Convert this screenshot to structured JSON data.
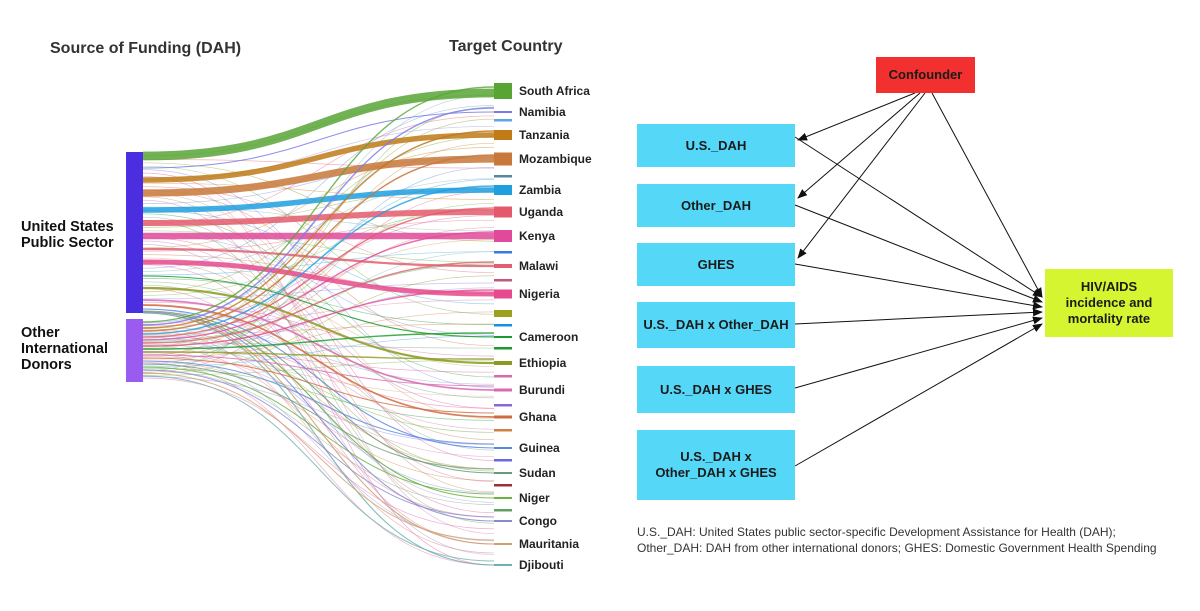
{
  "sankey": {
    "source_header": "Source of Funding (DAH)",
    "target_header": "Target Country",
    "sources": [
      {
        "name": "United States Public Sector",
        "lines": [
          "United States",
          "Public Sector"
        ],
        "color": "#4a2ee0"
      },
      {
        "name": "Other International Donors",
        "lines": [
          "Other",
          "International",
          "Donors"
        ],
        "color": "#9a5cf0"
      }
    ],
    "countries": [
      {
        "name": "South Africa",
        "color": "#58a536"
      },
      {
        "name": "Namibia",
        "color": "#7c7be6"
      },
      {
        "name": "Tanzania",
        "color": "#c07a16"
      },
      {
        "name": "Mozambique",
        "color": "#c8783a"
      },
      {
        "name": "Zambia",
        "color": "#1e9fe0"
      },
      {
        "name": "Uganda",
        "color": "#e45a6c"
      },
      {
        "name": "Kenya",
        "color": "#e14a9a"
      },
      {
        "name": "Malawi",
        "color": "#e06070"
      },
      {
        "name": "Nigeria",
        "color": "#e64a8c"
      },
      {
        "name": "Cameroon",
        "color": "#1a9a2a"
      },
      {
        "name": "Ethiopia",
        "color": "#8c9a1e"
      },
      {
        "name": "Burundi",
        "color": "#d86ab0"
      },
      {
        "name": "Ghana",
        "color": "#d06a40"
      },
      {
        "name": "Guinea",
        "color": "#5a86e0"
      },
      {
        "name": "Sudan",
        "color": "#6a9a7a"
      },
      {
        "name": "Niger",
        "color": "#6ab040"
      },
      {
        "name": "Congo",
        "color": "#8a8ad0"
      },
      {
        "name": "Mauritania",
        "color": "#d0a070"
      },
      {
        "name": "Djibouti",
        "color": "#70b0b0"
      }
    ]
  },
  "dag": {
    "confounder": "Confounder",
    "variables": [
      {
        "label": "U.S._DAH"
      },
      {
        "label": "Other_DAH"
      },
      {
        "label": "GHES"
      },
      {
        "label": "U.S._DAH x Other_DAH"
      },
      {
        "label": "U.S._DAH x GHES"
      },
      {
        "label": "U.S._DAH x Other_DAH x GHES"
      }
    ],
    "outcome": {
      "lines": [
        "HIV/AIDS",
        "incidence and",
        "mortality rate"
      ]
    },
    "colors": {
      "variable": "#55d8f8",
      "confounder": "#f23030",
      "outcome": "#d4f52f"
    }
  },
  "footnote": "U.S._DAH: United States public sector-specific Development Assistance for Health (DAH); Other_DAH: DAH from other international donors; GHES: Domestic Government Health Spending"
}
